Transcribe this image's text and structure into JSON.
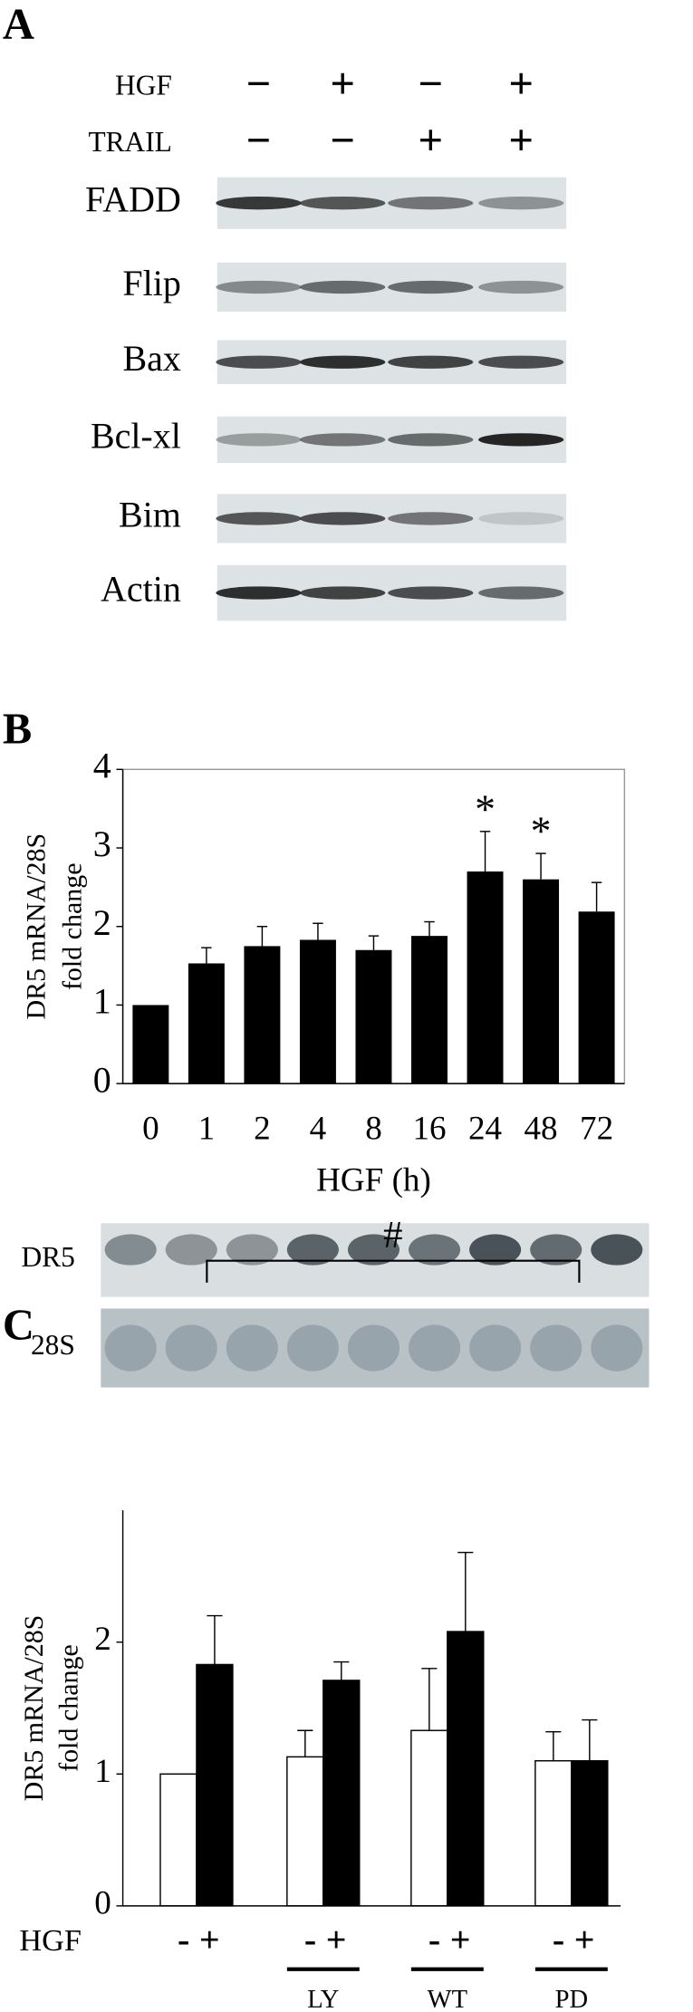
{
  "panel_a": {
    "label": "A",
    "rows": [
      {
        "label": "HGF",
        "signs": [
          "−",
          "+",
          "−",
          "+"
        ]
      },
      {
        "label": "TRAIL",
        "signs": [
          "−",
          "−",
          "+",
          "+"
        ]
      }
    ],
    "blots": [
      "FADD",
      "Flip",
      "Bax",
      "Bcl-xl",
      "Bim",
      "Actin"
    ]
  },
  "blot_b": {
    "labels": [
      "DR5",
      "28S"
    ]
  },
  "chart_data": [
    {
      "type": "bar",
      "panel": "B",
      "y_label": [
        "DR5 mRNA/28S",
        "fold change"
      ],
      "x_label": "HGF (h)",
      "categories": [
        "0",
        "1",
        "2",
        "4",
        "8",
        "16",
        "24",
        "48",
        "72"
      ],
      "values": [
        1,
        1.53,
        1.75,
        1.83,
        1.7,
        1.88,
        2.7,
        2.6,
        2.19
      ],
      "errors": [
        null,
        0.2,
        0.25,
        0.21,
        0.18,
        0.18,
        0.51,
        0.33,
        0.37
      ],
      "significance": [
        null,
        null,
        null,
        null,
        null,
        null,
        "*",
        "*",
        null
      ],
      "color": "#000000",
      "ylim": [
        0,
        4
      ],
      "yticks": [
        0,
        1,
        2,
        3,
        4
      ],
      "frame": true
    },
    {
      "type": "grouped_bar",
      "panel": "C",
      "y_label": [
        "DR5 mRNA/28S",
        "fold change"
      ],
      "x_row_label": "HGF",
      "categories": [
        null,
        "LY",
        "WT",
        "PD"
      ],
      "series": [
        {
          "name": "-",
          "color": "#ffffff",
          "values": [
            1,
            1.13,
            1.33,
            1.1
          ],
          "errors": [
            null,
            0.2,
            0.47,
            0.22
          ]
        },
        {
          "name": "+",
          "color": "#000000",
          "values": [
            1.83,
            1.71,
            2.08,
            1.1
          ],
          "errors": [
            0.37,
            0.14,
            0.6,
            0.31
          ]
        }
      ],
      "annotation": "#",
      "ylim": [
        0,
        3
      ],
      "yticks": [
        0,
        1,
        2
      ]
    }
  ]
}
